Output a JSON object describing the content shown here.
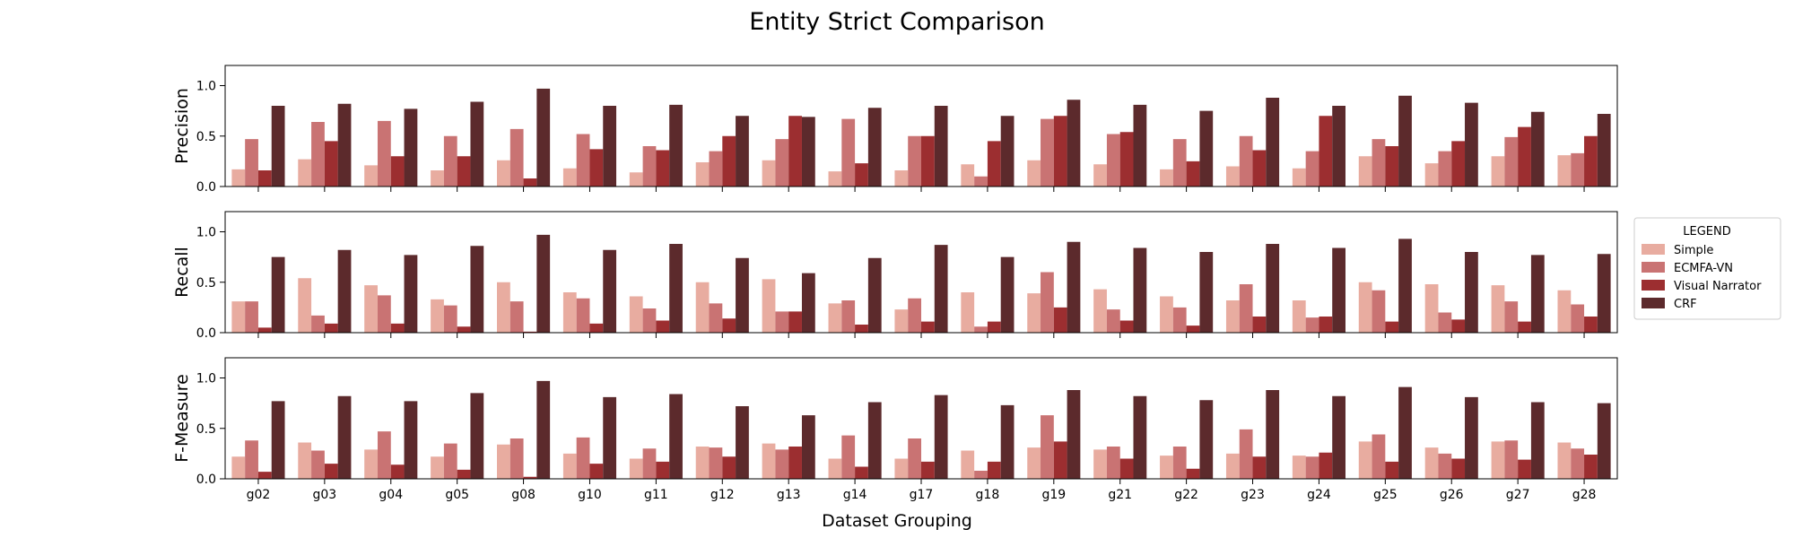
{
  "figure": {
    "title": "Entity Strict Comparison",
    "xlabel": "Dataset Grouping"
  },
  "legend": {
    "title": "LEGEND",
    "placement": "right",
    "entries": [
      "Simple",
      "ECMFA-VN",
      "Visual Narrator",
      "CRF"
    ]
  },
  "colors": {
    "Simple": "#e8aca0",
    "ECMFA-VN": "#c97373",
    "Visual Narrator": "#9c2e30",
    "CRF": "#5c2a2c"
  },
  "chart_data": [
    {
      "type": "bar",
      "ylabel": "Precision",
      "ylim": [
        0,
        1.2
      ],
      "yticks": [
        "0.0",
        "0.5",
        "1.0"
      ],
      "categories": [
        "g02",
        "g03",
        "g04",
        "g05",
        "g08",
        "g10",
        "g11",
        "g12",
        "g13",
        "g14",
        "g17",
        "g18",
        "g19",
        "g21",
        "g22",
        "g23",
        "g24",
        "g25",
        "g26",
        "g27",
        "g28"
      ],
      "series": [
        {
          "name": "Simple",
          "values": [
            0.17,
            0.27,
            0.21,
            0.16,
            0.26,
            0.18,
            0.14,
            0.24,
            0.26,
            0.15,
            0.16,
            0.22,
            0.26,
            0.22,
            0.17,
            0.2,
            0.18,
            0.3,
            0.23,
            0.3,
            0.31
          ]
        },
        {
          "name": "ECMFA-VN",
          "values": [
            0.47,
            0.64,
            0.65,
            0.5,
            0.57,
            0.52,
            0.4,
            0.35,
            0.47,
            0.67,
            0.5,
            0.1,
            0.67,
            0.52,
            0.47,
            0.5,
            0.35,
            0.47,
            0.35,
            0.49,
            0.33
          ]
        },
        {
          "name": "Visual Narrator",
          "values": [
            0.16,
            0.45,
            0.3,
            0.3,
            0.08,
            0.37,
            0.36,
            0.5,
            0.7,
            0.23,
            0.5,
            0.45,
            0.7,
            0.54,
            0.25,
            0.36,
            0.7,
            0.4,
            0.45,
            0.59,
            0.5
          ]
        },
        {
          "name": "CRF",
          "values": [
            0.8,
            0.82,
            0.77,
            0.84,
            0.97,
            0.8,
            0.81,
            0.7,
            0.69,
            0.78,
            0.8,
            0.7,
            0.86,
            0.81,
            0.75,
            0.88,
            0.8,
            0.9,
            0.83,
            0.74,
            0.72
          ]
        }
      ]
    },
    {
      "type": "bar",
      "ylabel": "Recall",
      "ylim": [
        0,
        1.2
      ],
      "yticks": [
        "0.0",
        "0.5",
        "1.0"
      ],
      "categories": [
        "g02",
        "g03",
        "g04",
        "g05",
        "g08",
        "g10",
        "g11",
        "g12",
        "g13",
        "g14",
        "g17",
        "g18",
        "g19",
        "g21",
        "g22",
        "g23",
        "g24",
        "g25",
        "g26",
        "g27",
        "g28"
      ],
      "series": [
        {
          "name": "Simple",
          "values": [
            0.31,
            0.54,
            0.47,
            0.33,
            0.5,
            0.4,
            0.36,
            0.5,
            0.53,
            0.29,
            0.23,
            0.4,
            0.39,
            0.43,
            0.36,
            0.32,
            0.32,
            0.5,
            0.48,
            0.47,
            0.42
          ]
        },
        {
          "name": "ECMFA-VN",
          "values": [
            0.31,
            0.17,
            0.37,
            0.27,
            0.31,
            0.34,
            0.24,
            0.29,
            0.21,
            0.32,
            0.34,
            0.06,
            0.6,
            0.23,
            0.25,
            0.48,
            0.15,
            0.42,
            0.2,
            0.31,
            0.28
          ]
        },
        {
          "name": "Visual Narrator",
          "values": [
            0.05,
            0.09,
            0.09,
            0.06,
            0.01,
            0.09,
            0.12,
            0.14,
            0.21,
            0.08,
            0.11,
            0.11,
            0.25,
            0.12,
            0.07,
            0.16,
            0.16,
            0.11,
            0.13,
            0.11,
            0.16
          ]
        },
        {
          "name": "CRF",
          "values": [
            0.75,
            0.82,
            0.77,
            0.86,
            0.97,
            0.82,
            0.88,
            0.74,
            0.59,
            0.74,
            0.87,
            0.75,
            0.9,
            0.84,
            0.8,
            0.88,
            0.84,
            0.93,
            0.8,
            0.77,
            0.78
          ]
        }
      ]
    },
    {
      "type": "bar",
      "ylabel": "F-Measure",
      "ylim": [
        0,
        1.2
      ],
      "yticks": [
        "0.0",
        "0.5",
        "1.0"
      ],
      "categories": [
        "g02",
        "g03",
        "g04",
        "g05",
        "g08",
        "g10",
        "g11",
        "g12",
        "g13",
        "g14",
        "g17",
        "g18",
        "g19",
        "g21",
        "g22",
        "g23",
        "g24",
        "g25",
        "g26",
        "g27",
        "g28"
      ],
      "series": [
        {
          "name": "Simple",
          "values": [
            0.22,
            0.36,
            0.29,
            0.22,
            0.34,
            0.25,
            0.2,
            0.32,
            0.35,
            0.2,
            0.2,
            0.28,
            0.31,
            0.29,
            0.23,
            0.25,
            0.23,
            0.37,
            0.31,
            0.37,
            0.36
          ]
        },
        {
          "name": "ECMFA-VN",
          "values": [
            0.38,
            0.28,
            0.47,
            0.35,
            0.4,
            0.41,
            0.3,
            0.31,
            0.29,
            0.43,
            0.4,
            0.08,
            0.63,
            0.32,
            0.32,
            0.49,
            0.22,
            0.44,
            0.25,
            0.38,
            0.3
          ]
        },
        {
          "name": "Visual Narrator",
          "values": [
            0.07,
            0.15,
            0.14,
            0.09,
            0.02,
            0.15,
            0.17,
            0.22,
            0.32,
            0.12,
            0.17,
            0.17,
            0.37,
            0.2,
            0.1,
            0.22,
            0.26,
            0.17,
            0.2,
            0.19,
            0.24
          ]
        },
        {
          "name": "CRF",
          "values": [
            0.77,
            0.82,
            0.77,
            0.85,
            0.97,
            0.81,
            0.84,
            0.72,
            0.63,
            0.76,
            0.83,
            0.73,
            0.88,
            0.82,
            0.78,
            0.88,
            0.82,
            0.91,
            0.81,
            0.76,
            0.75
          ]
        }
      ]
    }
  ]
}
